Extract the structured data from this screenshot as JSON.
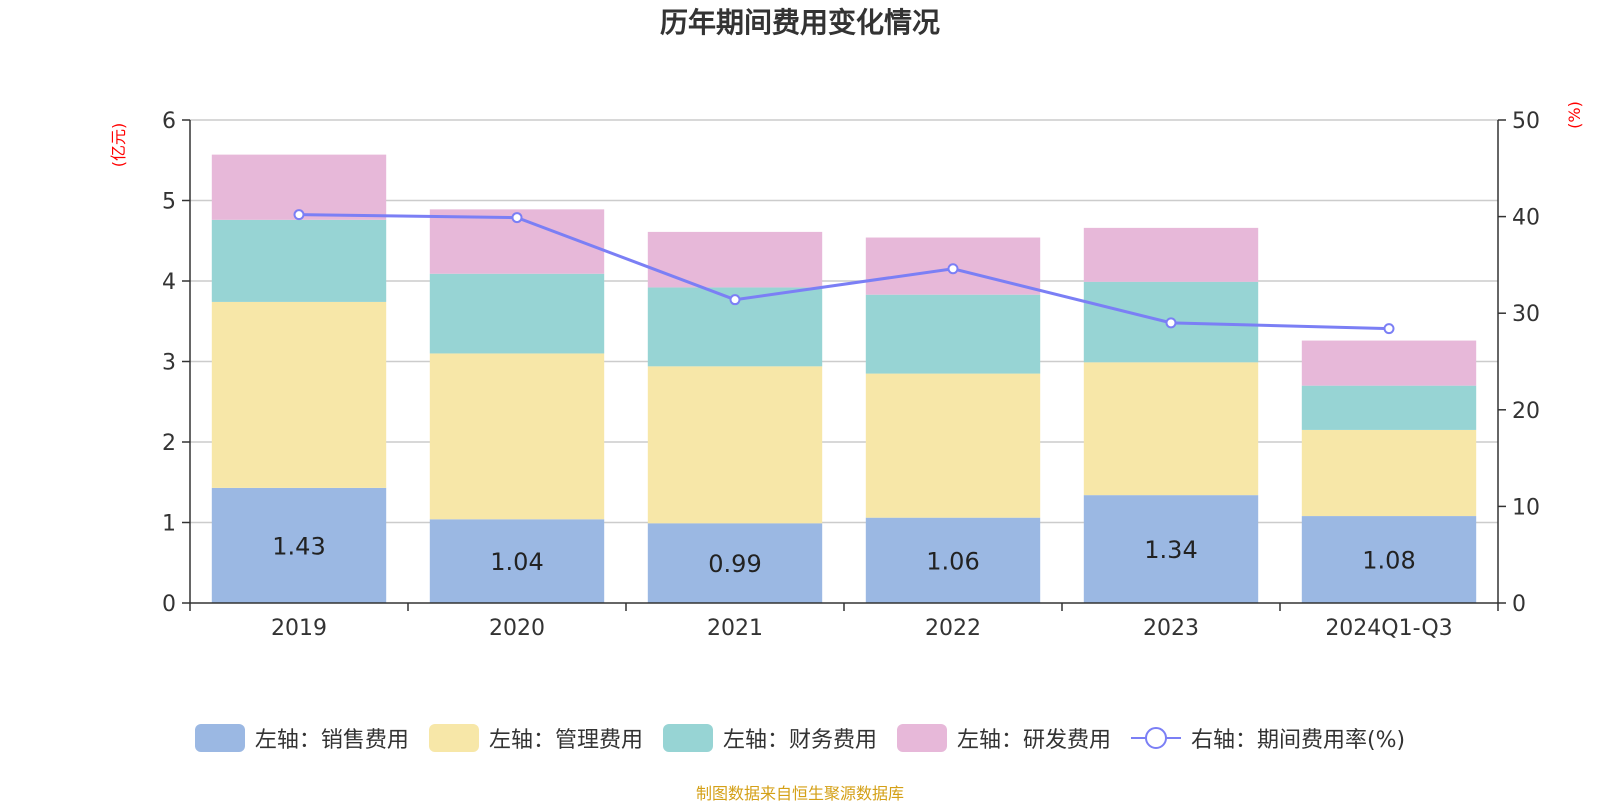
{
  "chart_data": {
    "type": "bar",
    "stacked": true,
    "title": "历年期间费用变化情况",
    "categories": [
      "2019",
      "2020",
      "2021",
      "2022",
      "2023",
      "2024Q1-Q3"
    ],
    "left_axis": {
      "label": "(亿元)",
      "ylim": [
        0,
        6
      ],
      "ticks": [
        0,
        1,
        2,
        3,
        4,
        5,
        6
      ]
    },
    "right_axis": {
      "label": "(%)",
      "ylim": [
        0,
        50
      ],
      "ticks": [
        0,
        10,
        20,
        30,
        40,
        50
      ]
    },
    "series": [
      {
        "name": "左轴：销售费用",
        "axis": "left",
        "color": "#9bb8e3",
        "values": [
          1.43,
          1.04,
          0.99,
          1.06,
          1.34,
          1.08
        ],
        "show_labels": true
      },
      {
        "name": "左轴：管理费用",
        "axis": "left",
        "color": "#f7e7a8",
        "values": [
          2.31,
          2.06,
          1.95,
          1.79,
          1.65,
          1.07
        ],
        "show_labels": false
      },
      {
        "name": "左轴：财务费用",
        "axis": "left",
        "color": "#97d4d4",
        "values": [
          1.02,
          0.99,
          0.98,
          0.98,
          1.0,
          0.55
        ],
        "show_labels": false
      },
      {
        "name": "左轴：研发费用",
        "axis": "left",
        "color": "#e7b8d9",
        "values": [
          0.81,
          0.8,
          0.69,
          0.71,
          0.67,
          0.56
        ],
        "show_labels": false
      },
      {
        "name": "右轴：期间费用率(%)",
        "axis": "right",
        "type": "line",
        "color": "#7b7ff5",
        "values": [
          40.2,
          39.9,
          31.4,
          34.6,
          29.0,
          28.4
        ]
      }
    ],
    "grid": true,
    "legend_position": "bottom-center"
  },
  "source_note": "制图数据来自恒生聚源数据库"
}
